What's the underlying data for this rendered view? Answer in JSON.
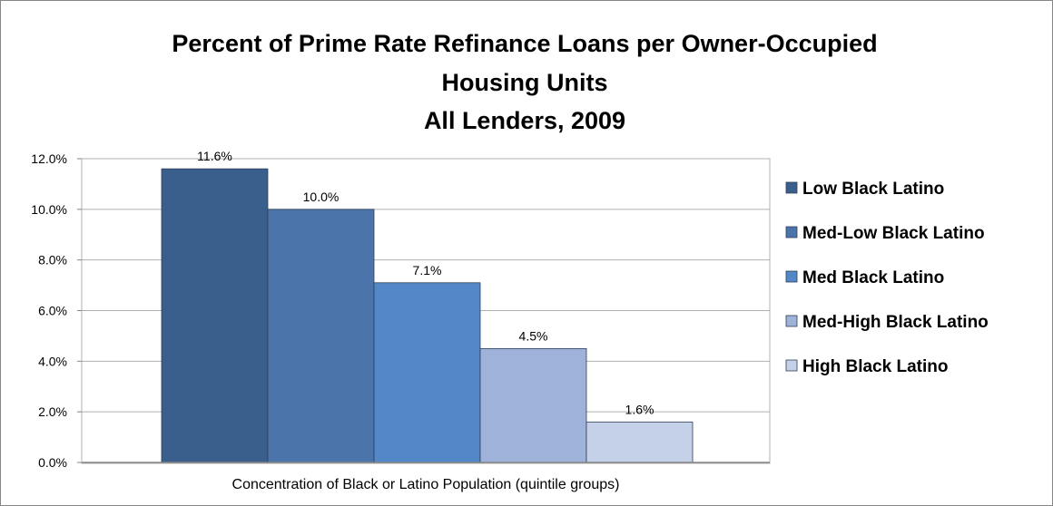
{
  "chart_data": {
    "type": "bar",
    "title_lines": [
      "Percent of Prime Rate Refinance Loans per Owner-Occupied",
      "Housing Units",
      "All Lenders, 2009"
    ],
    "xlabel": "Concentration of Black or Latino Population (quintile groups)",
    "ylabel": "",
    "ylim": [
      0,
      0.12
    ],
    "yticks": [
      0,
      0.02,
      0.04,
      0.06,
      0.08,
      0.1,
      0.12
    ],
    "ytick_labels": [
      "0.0%",
      "2.0%",
      "4.0%",
      "6.0%",
      "8.0%",
      "10.0%",
      "12.0%"
    ],
    "grid": true,
    "legend_position": "right",
    "series": [
      {
        "name": "Low Black Latino",
        "value": 0.116,
        "label": "11.6%",
        "color": "#3a5f8c"
      },
      {
        "name": "Med-Low Black Latino",
        "value": 0.1,
        "label": "10.0%",
        "color": "#4a74aa"
      },
      {
        "name": "Med Black Latino",
        "value": 0.071,
        "label": "7.1%",
        "color": "#5388c8"
      },
      {
        "name": "Med-High Black Latino",
        "value": 0.045,
        "label": "4.5%",
        "color": "#9fb2d9"
      },
      {
        "name": "High Black Latino",
        "value": 0.016,
        "label": "1.6%",
        "color": "#c5d1e8"
      }
    ]
  }
}
